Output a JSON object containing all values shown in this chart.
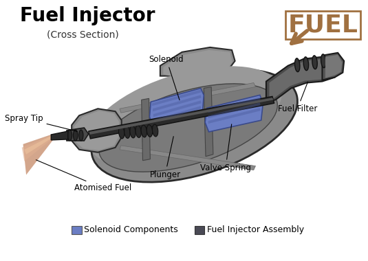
{
  "title": "Fuel Injector",
  "subtitle": "(Cross Section)",
  "fuel_label": "FUEL",
  "fuel_color": "#A07040",
  "background_color": "#ffffff",
  "labels": {
    "solenoid": "Solenoid",
    "spray_tip": "Spray Tip",
    "atomised_fuel": "Atomised Fuel",
    "plunger": "Plunger",
    "valve_spring": "Valve Spring",
    "fuel_filter": "Fuel Filter"
  },
  "legend": [
    {
      "label": "Solenoid Components",
      "color": "#6B7EC4"
    },
    {
      "label": "Fuel Injector Assembly",
      "color": "#4A4A55"
    }
  ],
  "body_color": "#8A8A8A",
  "body_dark": "#4A4A4A",
  "body_mid": "#6A6A6A",
  "body_light": "#AAAAAA",
  "solenoid_color": "#6B7EC4",
  "solenoid_dark": "#4A5A9A",
  "atomised_color": "#C8906A",
  "line_color": "#000000"
}
